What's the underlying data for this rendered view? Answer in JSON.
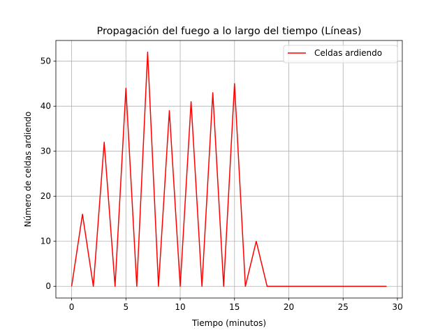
{
  "chart_data": {
    "type": "line",
    "title": "Propagación del fuego a lo largo del tiempo (Líneas)",
    "xlabel": "Tiempo (minutos)",
    "ylabel": "Número de celdas ardiendo",
    "xlim": [
      -1.45,
      30.45
    ],
    "ylim": [
      -2.6,
      54.6
    ],
    "xticks": [
      0,
      5,
      10,
      15,
      20,
      25,
      30
    ],
    "yticks": [
      0,
      10,
      20,
      30,
      40,
      50
    ],
    "grid": true,
    "legend_position": "top-right",
    "series": [
      {
        "name": "Celdas ardiendo",
        "color": "#ff0000",
        "x": [
          0,
          1,
          2,
          3,
          4,
          5,
          6,
          7,
          8,
          9,
          10,
          11,
          12,
          13,
          14,
          15,
          16,
          17,
          18,
          19,
          20,
          21,
          22,
          23,
          24,
          25,
          26,
          27,
          28,
          29
        ],
        "values": [
          0,
          16,
          0,
          32,
          0,
          44,
          0,
          52,
          0,
          39,
          0,
          41,
          0,
          43,
          0,
          45,
          0,
          10,
          0,
          0,
          0,
          0,
          0,
          0,
          0,
          0,
          0,
          0,
          0,
          0
        ]
      }
    ]
  }
}
